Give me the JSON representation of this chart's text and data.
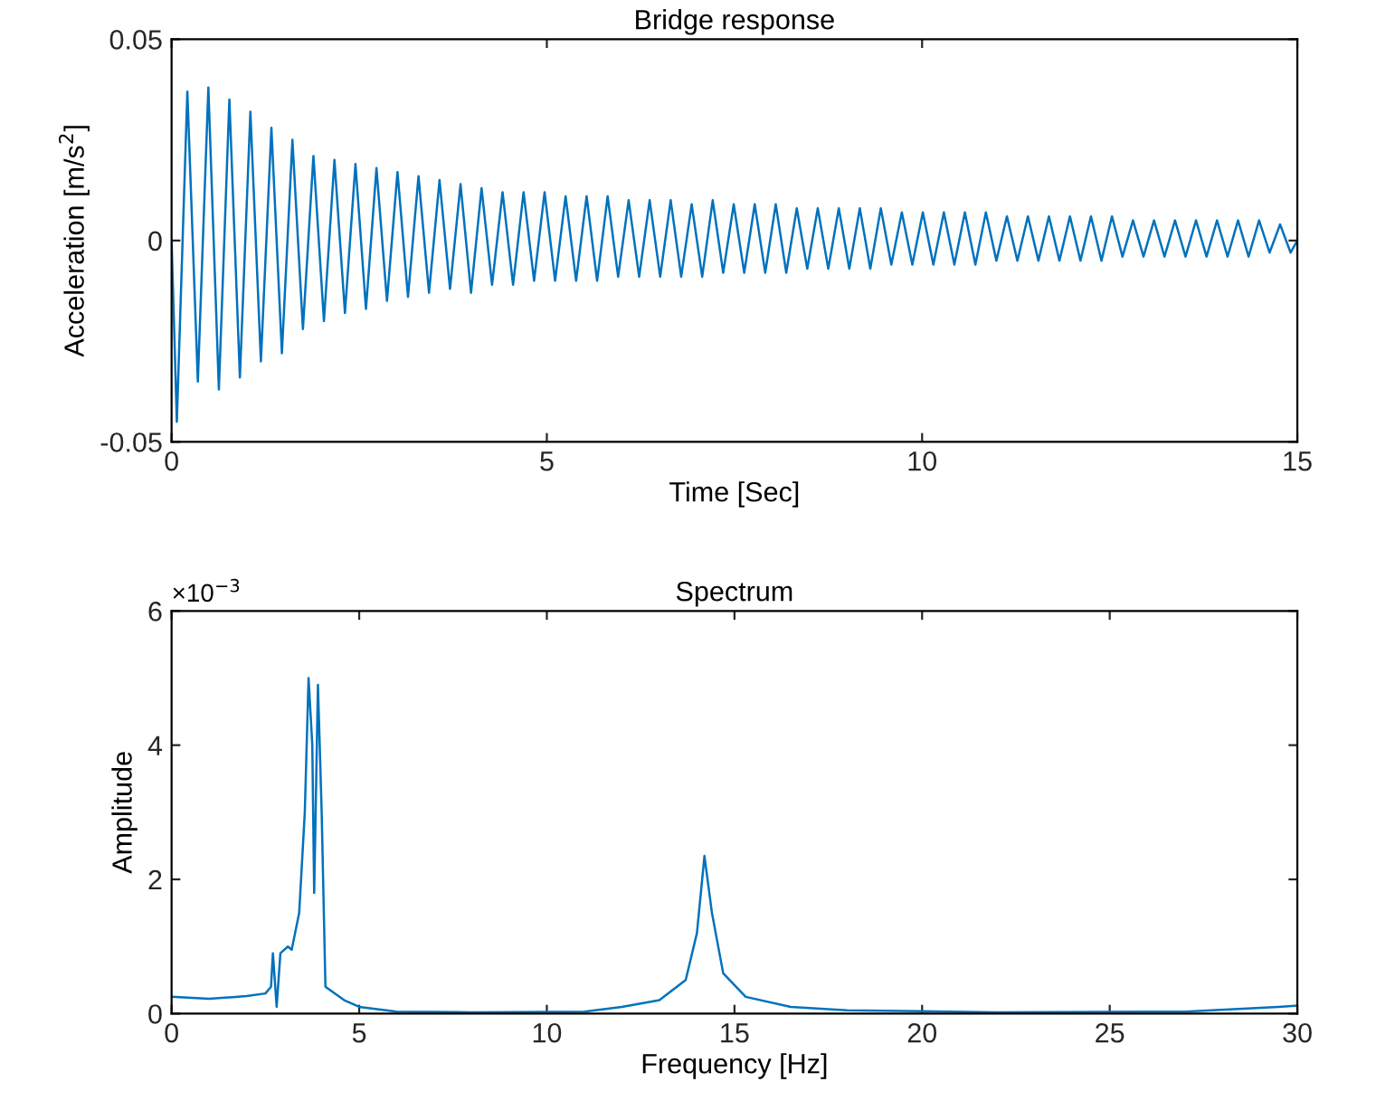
{
  "chart_data": [
    {
      "type": "line",
      "title": "Bridge response",
      "xlabel": "Time [Sec]",
      "ylabel": "Acceleration [m/s$^{2}$]",
      "xlim": [
        0,
        15
      ],
      "ylim": [
        -0.05,
        0.05
      ],
      "xticks": [
        0,
        5,
        10,
        15
      ],
      "yticks": [
        {
          "value": -0.05,
          "label": "-0.05"
        },
        0,
        0.05
      ],
      "grid": false,
      "line_style": "solid",
      "x": [
        0,
        0.07,
        0.21,
        0.35,
        0.49,
        0.63,
        0.77,
        0.91,
        1.05,
        1.19,
        1.33,
        1.47,
        1.61,
        1.75,
        1.89,
        2.03,
        2.17,
        2.31,
        2.45,
        2.59,
        2.73,
        2.87,
        3.01,
        3.15,
        3.29,
        3.43,
        3.57,
        3.71,
        3.85,
        3.99,
        4.13,
        4.27,
        4.41,
        4.55,
        4.69,
        4.83,
        4.97,
        5.11,
        5.25,
        5.39,
        5.53,
        5.67,
        5.81,
        5.95,
        6.09,
        6.23,
        6.37,
        6.51,
        6.65,
        6.79,
        6.93,
        7.07,
        7.21,
        7.35,
        7.49,
        7.63,
        7.77,
        7.91,
        8.05,
        8.19,
        8.33,
        8.47,
        8.61,
        8.75,
        8.89,
        9.03,
        9.17,
        9.31,
        9.45,
        9.59,
        9.73,
        9.87,
        10.01,
        10.15,
        10.29,
        10.43,
        10.57,
        10.71,
        10.85,
        10.99,
        11.13,
        11.27,
        11.41,
        11.55,
        11.69,
        11.83,
        11.97,
        12.11,
        12.25,
        12.39,
        12.53,
        12.67,
        12.81,
        12.95,
        13.09,
        13.23,
        13.37,
        13.51,
        13.65,
        13.79,
        13.93,
        14.07,
        14.21,
        14.35,
        14.49,
        14.63,
        14.77,
        14.91,
        15
      ],
      "series": [
        {
          "color": "#0072bd",
          "values": [
            0,
            -0.045,
            0.037,
            -0.035,
            0.038,
            -0.037,
            0.035,
            -0.034,
            0.032,
            -0.03,
            0.028,
            -0.028,
            0.025,
            -0.022,
            0.021,
            -0.02,
            0.02,
            -0.018,
            0.019,
            -0.017,
            0.018,
            -0.015,
            0.017,
            -0.014,
            0.016,
            -0.013,
            0.015,
            -0.012,
            0.014,
            -0.013,
            0.013,
            -0.011,
            0.012,
            -0.011,
            0.012,
            -0.01,
            0.012,
            -0.01,
            0.011,
            -0.01,
            0.011,
            -0.01,
            0.011,
            -0.009,
            0.01,
            -0.009,
            0.01,
            -0.009,
            0.01,
            -0.009,
            0.009,
            -0.009,
            0.01,
            -0.008,
            0.009,
            -0.008,
            0.009,
            -0.008,
            0.009,
            -0.008,
            0.008,
            -0.007,
            0.008,
            -0.007,
            0.008,
            -0.007,
            0.008,
            -0.007,
            0.008,
            -0.006,
            0.007,
            -0.006,
            0.007,
            -0.006,
            0.007,
            -0.006,
            0.007,
            -0.006,
            0.007,
            -0.005,
            0.006,
            -0.005,
            0.006,
            -0.005,
            0.006,
            -0.005,
            0.006,
            -0.005,
            0.006,
            -0.005,
            0.006,
            -0.004,
            0.005,
            -0.004,
            0.005,
            -0.004,
            0.005,
            -0.004,
            0.005,
            -0.004,
            0.005,
            -0.004,
            0.005,
            -0.004,
            0.005,
            -0.003,
            0.004,
            -0.003,
            0
          ]
        }
      ]
    },
    {
      "type": "line",
      "title": "Spectrum",
      "xlabel": "Frequency [Hz]",
      "ylabel": "Amplitude",
      "xlim": [
        0,
        30
      ],
      "ylim": [
        0,
        6
      ],
      "xticks": [
        0,
        5,
        10,
        15,
        20,
        25,
        30
      ],
      "yticks": [
        0,
        2,
        4,
        6
      ],
      "grid": false,
      "line_style": "solid",
      "annotations": [
        "×10$^{−3}$"
      ],
      "x": [
        0,
        1,
        2,
        2.5,
        2.65,
        2.7,
        2.8,
        2.9,
        3.1,
        3.2,
        3.4,
        3.55,
        3.65,
        3.75,
        3.8,
        3.9,
        4.0,
        4.1,
        4.6,
        5,
        6,
        8,
        11,
        12,
        13,
        13.7,
        14.0,
        14.2,
        14.4,
        14.7,
        15.3,
        16.5,
        18,
        22,
        27,
        29.5,
        30
      ],
      "series": [
        {
          "color": "#0072bd",
          "values": [
            0.25,
            0.22,
            0.26,
            0.3,
            0.4,
            0.9,
            0.1,
            0.9,
            1.0,
            0.95,
            1.5,
            3.0,
            5.0,
            4.0,
            1.8,
            4.9,
            3.0,
            0.4,
            0.2,
            0.1,
            0.03,
            0.02,
            0.03,
            0.1,
            0.2,
            0.5,
            1.2,
            2.35,
            1.5,
            0.6,
            0.25,
            0.1,
            0.05,
            0.02,
            0.03,
            0.1,
            0.12
          ]
        }
      ]
    }
  ]
}
